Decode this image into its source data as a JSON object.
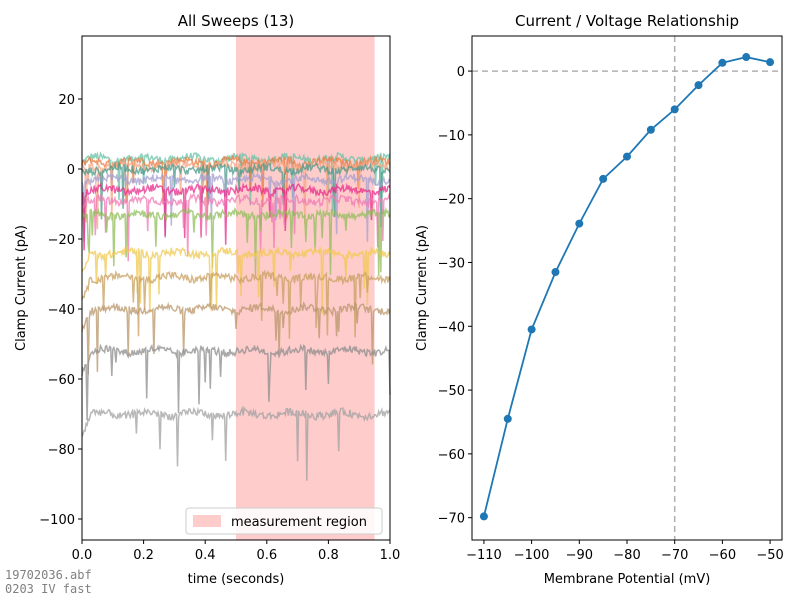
{
  "footnote": {
    "line1": "19702036.abf",
    "line2": "0203 IV fast"
  },
  "chart_data": [
    {
      "type": "line",
      "title": "All Sweeps (13)",
      "xlabel": "time (seconds)",
      "ylabel": "Clamp Current (pA)",
      "xlim": [
        0,
        1
      ],
      "ylim": [
        -106,
        38
      ],
      "xticks": [
        "0.0",
        "0.2",
        "0.4",
        "0.6",
        "0.8",
        "1.0"
      ],
      "yticks": [
        "−100",
        "−80",
        "−60",
        "−40",
        "−20",
        "0",
        "20"
      ],
      "shaded_region": {
        "x": [
          0.5,
          0.95
        ],
        "color": "#ffcccc",
        "label": "measurement region"
      },
      "legend": {
        "position": "bottom-right",
        "entries": [
          "measurement region"
        ]
      },
      "sweep_count": 13,
      "series": [
        {
          "baseline": 3,
          "color": "#66c2a5"
        },
        {
          "baseline": 2,
          "color": "#e87a3e"
        },
        {
          "baseline": 1,
          "color": "#f4a582"
        },
        {
          "baseline": 0,
          "color": "#4a9a8a"
        },
        {
          "baseline": -3,
          "color": "#a39fcf"
        },
        {
          "baseline": -6,
          "color": "#e7298a"
        },
        {
          "baseline": -9,
          "color": "#f078b4"
        },
        {
          "baseline": -13,
          "color": "#8fbe5a"
        },
        {
          "baseline": -24,
          "color": "#f0c850"
        },
        {
          "baseline": -31,
          "color": "#c8a060"
        },
        {
          "baseline": -40,
          "color": "#b8956a"
        },
        {
          "baseline": -52,
          "color": "#8c8c8c"
        },
        {
          "baseline": -70,
          "color": "#a0a0a0"
        }
      ]
    },
    {
      "type": "line",
      "title": "Current / Voltage Relationship",
      "xlabel": "Membrane Potential (mV)",
      "ylabel": "Clamp Current (pA)",
      "xlim": [
        -112.5,
        -47.5
      ],
      "ylim": [
        -73.5,
        5.5
      ],
      "xticks": [
        "−110",
        "−100",
        "−90",
        "−80",
        "−70",
        "−60",
        "−50"
      ],
      "yticks": [
        "−70",
        "−60",
        "−50",
        "−40",
        "−30",
        "−20",
        "−10",
        "0"
      ],
      "reference_lines": {
        "x": -70,
        "y": 0
      },
      "color": "#1f77b4",
      "x": [
        -110,
        -105,
        -100,
        -95,
        -90,
        -85,
        -80,
        -75,
        -70,
        -65,
        -60,
        -55,
        -50
      ],
      "y": [
        -69.8,
        -54.5,
        -40.5,
        -31.5,
        -23.9,
        -16.9,
        -13.4,
        -9.2,
        -6.0,
        -2.2,
        1.3,
        2.2,
        1.4
      ]
    }
  ]
}
